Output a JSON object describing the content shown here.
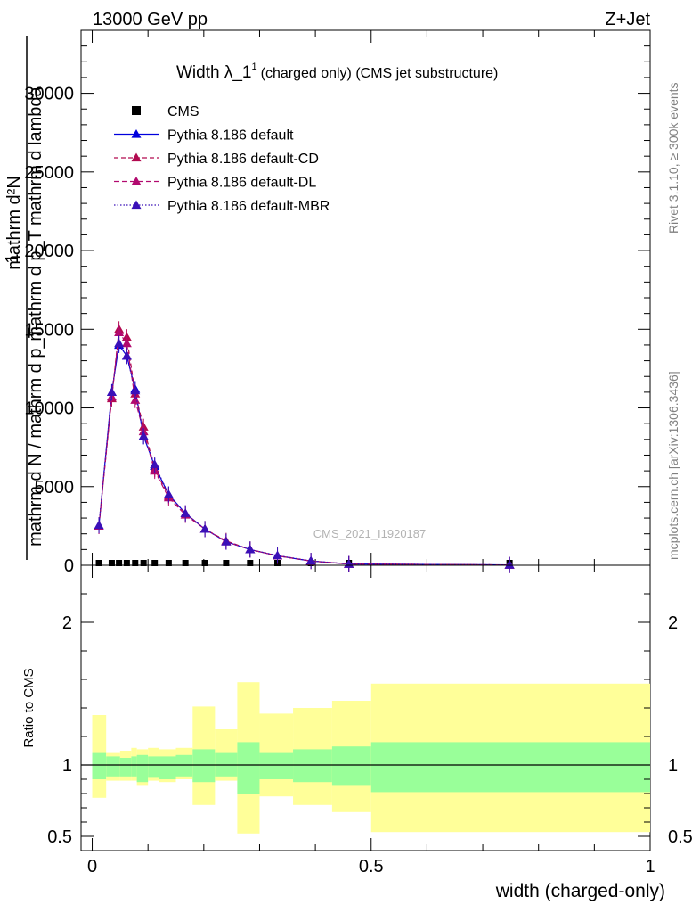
{
  "header": {
    "energy_label": "13000 GeV pp",
    "process_label": "Z+Jet"
  },
  "side_labels": {
    "rivet": "Rivet 3.1.10, ≥ 300k events",
    "mcplots": "mcplots.cern.ch [arXiv:1306.3436]"
  },
  "colors": {
    "cms": "#000000",
    "default": "#0000dd",
    "cd": "#b20a4f",
    "dl": "#b20a6f",
    "mbr": "#3a10b8",
    "band_stat": "#99ff99",
    "band_tot": "#ffff99"
  },
  "chart_data": [
    {
      "id": "main",
      "type": "line",
      "title": "Width λ_1",
      "title_superscript": "1",
      "title_suffix": "(charged only) (CMS jet substructure)",
      "watermark": "CMS_2021_I1920187",
      "ylabel_numerator": "mathrm d²N",
      "ylabel_denominator": "mathrm d p_T mathrm d lambda",
      "ylabel_prefix_num": "1",
      "ylabel_prefix_den": "mathrm d N / mathrm d p_T",
      "xlim": [
        -0.02,
        1.0
      ],
      "ylim": [
        0,
        34000
      ],
      "yticks": [
        0,
        5000,
        10000,
        15000,
        20000,
        25000,
        30000
      ],
      "ytick_labels": [
        "0",
        "5000",
        "10000",
        "15000",
        "20000",
        "25000",
        "30000"
      ],
      "legend": [
        "CMS",
        "Pythia 8.186 default",
        "Pythia 8.186 default-CD",
        "Pythia 8.186 default-DL",
        "Pythia 8.186 default-MBR"
      ],
      "x": [
        0.012,
        0.035,
        0.048,
        0.062,
        0.077,
        0.092,
        0.112,
        0.137,
        0.167,
        0.202,
        0.24,
        0.283,
        0.332,
        0.392,
        0.46,
        0.748
      ],
      "series": [
        {
          "name": "CMS",
          "values": [
            0,
            0,
            0,
            0,
            0,
            0,
            0,
            0,
            0,
            0,
            0,
            0,
            0,
            0,
            0,
            0
          ]
        },
        {
          "name": "Pythia 8.186 default",
          "values": [
            2500,
            11000,
            14000,
            13300,
            11200,
            8200,
            6300,
            4500,
            3300,
            2300,
            1500,
            1000,
            600,
            270,
            80,
            20
          ]
        },
        {
          "name": "Pythia 8.186 default-CD",
          "values": [
            2500,
            10600,
            15000,
            14500,
            10900,
            8800,
            6100,
            4400,
            3300,
            2300,
            1550,
            1000,
            600,
            270,
            80,
            20
          ]
        },
        {
          "name": "Pythia 8.186 default-DL",
          "values": [
            2500,
            10700,
            14800,
            14100,
            10500,
            8500,
            6000,
            4300,
            3200,
            2300,
            1500,
            1000,
            600,
            270,
            80,
            20
          ]
        },
        {
          "name": "Pythia 8.186 default-MBR",
          "values": [
            2550,
            11000,
            14100,
            13300,
            11100,
            8200,
            6400,
            4500,
            3300,
            2300,
            1500,
            1000,
            620,
            280,
            80,
            20
          ]
        }
      ]
    },
    {
      "id": "ratio",
      "type": "area",
      "ylabel": "Ratio to CMS",
      "xlabel": "width (charged-only)",
      "xlim": [
        -0.02,
        1.0
      ],
      "ylim": [
        0.4,
        2.4
      ],
      "yticks": [
        0.5,
        1,
        2
      ],
      "ytick_labels": [
        "0.5",
        "1",
        "2"
      ],
      "xticks": [
        0,
        0.5,
        1
      ],
      "xtick_labels": [
        "0",
        "0.5",
        "1"
      ],
      "bin_edges": [
        0,
        0.025,
        0.05,
        0.07,
        0.08,
        0.1,
        0.12,
        0.15,
        0.18,
        0.22,
        0.26,
        0.3,
        0.36,
        0.43,
        0.5,
        1.0
      ],
      "band_stat_low": [
        0.9,
        0.92,
        0.92,
        0.92,
        0.88,
        0.91,
        0.9,
        0.92,
        0.88,
        0.92,
        0.8,
        0.9,
        0.88,
        0.86,
        0.81
      ],
      "band_stat_high": [
        1.09,
        1.06,
        1.05,
        1.06,
        1.07,
        1.06,
        1.06,
        1.07,
        1.11,
        1.09,
        1.16,
        1.09,
        1.11,
        1.13,
        1.16
      ],
      "band_tot_low": [
        0.77,
        0.89,
        0.89,
        0.89,
        0.86,
        0.89,
        0.88,
        0.9,
        0.72,
        0.89,
        0.52,
        0.78,
        0.72,
        0.67,
        0.53
      ],
      "band_tot_high": [
        1.35,
        1.09,
        1.1,
        1.12,
        1.11,
        1.12,
        1.11,
        1.12,
        1.41,
        1.25,
        1.58,
        1.36,
        1.4,
        1.45,
        1.57
      ]
    }
  ]
}
